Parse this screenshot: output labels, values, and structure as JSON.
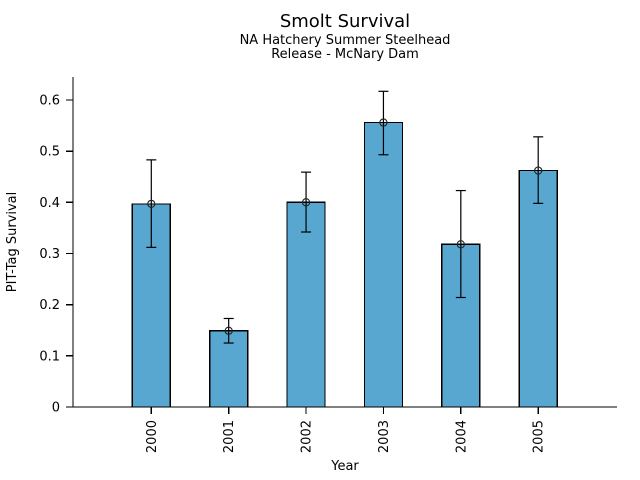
{
  "figure": {
    "background": "#ffffff"
  },
  "chart_data": {
    "type": "bar",
    "title": "Smolt Survival",
    "subtitle_lines": [
      "NA Hatchery Summer Steelhead",
      "Release - McNary Dam"
    ],
    "xlabel": "Year",
    "ylabel": "PIT-Tag Survival",
    "categories": [
      "2000",
      "2001",
      "2002",
      "2003",
      "2004",
      "2005"
    ],
    "series": [
      {
        "name": "PIT-Tag Survival",
        "values": [
          0.397,
          0.149,
          0.4,
          0.556,
          0.318,
          0.462
        ],
        "error_low": [
          0.312,
          0.125,
          0.342,
          0.493,
          0.214,
          0.398
        ],
        "error_high": [
          0.483,
          0.173,
          0.459,
          0.617,
          0.423,
          0.528
        ]
      }
    ],
    "ytick_values": [
      0,
      0.1,
      0.2,
      0.3,
      0.4,
      0.5,
      0.6
    ],
    "ytick_labels": [
      "0",
      "0.1",
      "0.2",
      "0.3",
      "0.4",
      "0.5",
      "0.6"
    ],
    "ylim": [
      0,
      0.645
    ],
    "grid": false,
    "legend_position": "none",
    "bar_color": "#58A7D0",
    "bar_edge_color": "#000000",
    "error_bar_color": "#000000",
    "marker": "open-circle",
    "marker_color": "#222222",
    "axis_color": "#000000"
  }
}
